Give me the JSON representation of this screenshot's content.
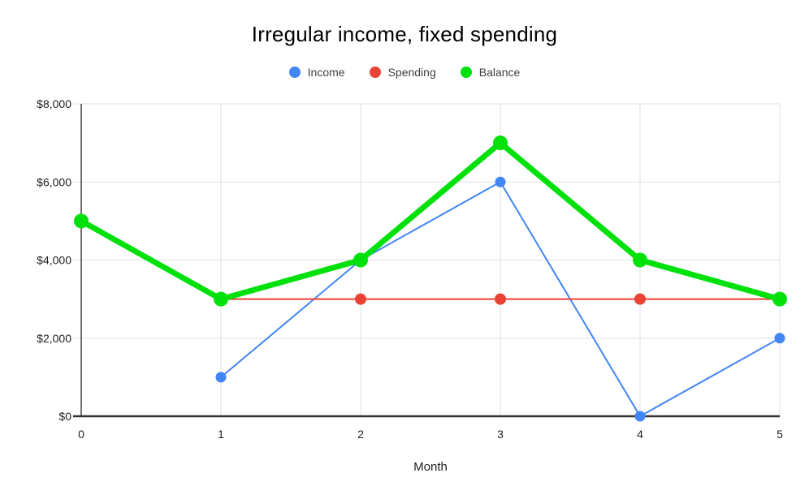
{
  "chart_data": {
    "type": "line",
    "title": "Irregular income, fixed spending",
    "xlabel": "Month",
    "ylabel": "",
    "x": [
      0,
      1,
      2,
      3,
      4,
      5
    ],
    "x_tick_labels": [
      "0",
      "1",
      "2",
      "3",
      "4",
      "5"
    ],
    "y_ticks": [
      0,
      2000,
      4000,
      6000,
      8000
    ],
    "y_tick_labels": [
      "$0",
      "$2,000",
      "$4,000",
      "$6,000",
      "$8,000"
    ],
    "xlim": [
      0,
      5
    ],
    "ylim": [
      0,
      8000
    ],
    "grid": true,
    "legend_position": "top",
    "series": [
      {
        "name": "Income",
        "color": "#4285F4",
        "values": [
          null,
          1000,
          4000,
          6000,
          0,
          2000
        ]
      },
      {
        "name": "Spending",
        "color": "#EA4335",
        "values": [
          null,
          3000,
          3000,
          3000,
          3000,
          3000
        ]
      },
      {
        "name": "Balance",
        "color": "#00E10C",
        "values": [
          5000,
          3000,
          4000,
          7000,
          4000,
          3000
        ]
      }
    ]
  },
  "colors": {
    "background": "#FFFFFF",
    "title_text": "#000000",
    "legend_text": "#3C4043",
    "axis_text": "#202124",
    "grid_line": "#E0E0E0",
    "axis_line": "#333333"
  }
}
